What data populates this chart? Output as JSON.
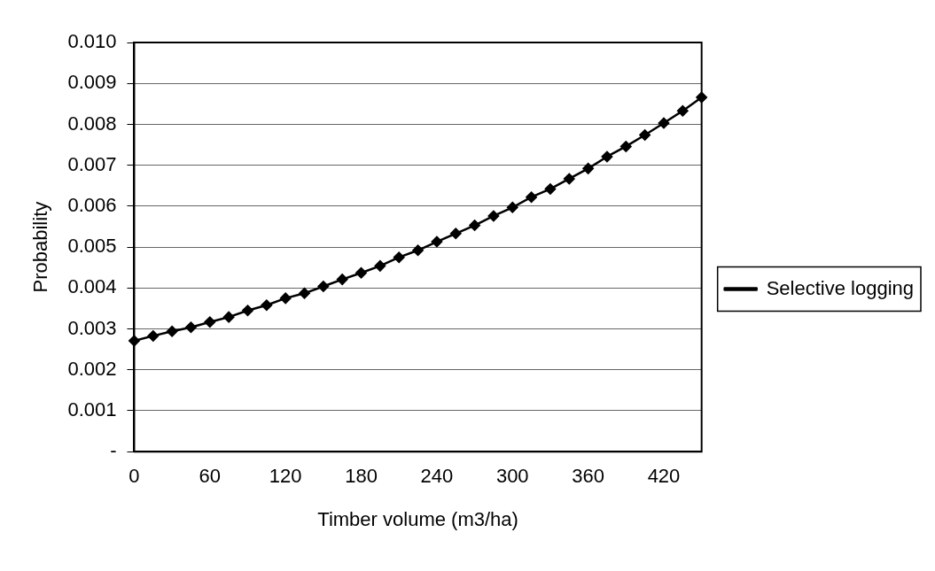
{
  "chart_data": {
    "type": "line",
    "xlabel": "Timber volume (m3/ha)",
    "ylabel": "Probability",
    "categories": [
      "0",
      null,
      null,
      null,
      "60",
      null,
      null,
      null,
      "120",
      null,
      null,
      null,
      "180",
      null,
      null,
      null,
      "240",
      null,
      null,
      null,
      "300",
      null,
      null,
      null,
      "360",
      null,
      null,
      null,
      "420",
      null,
      null
    ],
    "series": [
      {
        "name": "Selective logging",
        "color": "#000000",
        "values": [
          0.00271,
          0.00283,
          0.00294,
          0.00304,
          0.00317,
          0.00329,
          0.00345,
          0.00358,
          0.00375,
          0.00387,
          0.00404,
          0.00421,
          0.00437,
          0.00454,
          0.00475,
          0.00492,
          0.00513,
          0.00533,
          0.00553,
          0.00576,
          0.00597,
          0.00622,
          0.00642,
          0.00667,
          0.00692,
          0.00721,
          0.00746,
          0.00774,
          0.00803,
          0.00833,
          0.00866
        ]
      }
    ],
    "ylim": [
      0,
      0.01
    ],
    "yticks": [
      {
        "value": 0,
        "label": "-"
      },
      {
        "value": 0.001,
        "label": "0.001"
      },
      {
        "value": 0.002,
        "label": "0.002"
      },
      {
        "value": 0.003,
        "label": "0.003"
      },
      {
        "value": 0.004,
        "label": "0.004"
      },
      {
        "value": 0.005,
        "label": "0.005"
      },
      {
        "value": 0.006,
        "label": "0.006"
      },
      {
        "value": 0.007,
        "label": "0.007"
      },
      {
        "value": 0.008,
        "label": "0.008"
      },
      {
        "value": 0.009,
        "label": "0.009"
      },
      {
        "value": 0.01,
        "label": "0.010"
      }
    ],
    "grid": "y",
    "legend": "right",
    "marker": "diamond",
    "line_style": "solid"
  }
}
